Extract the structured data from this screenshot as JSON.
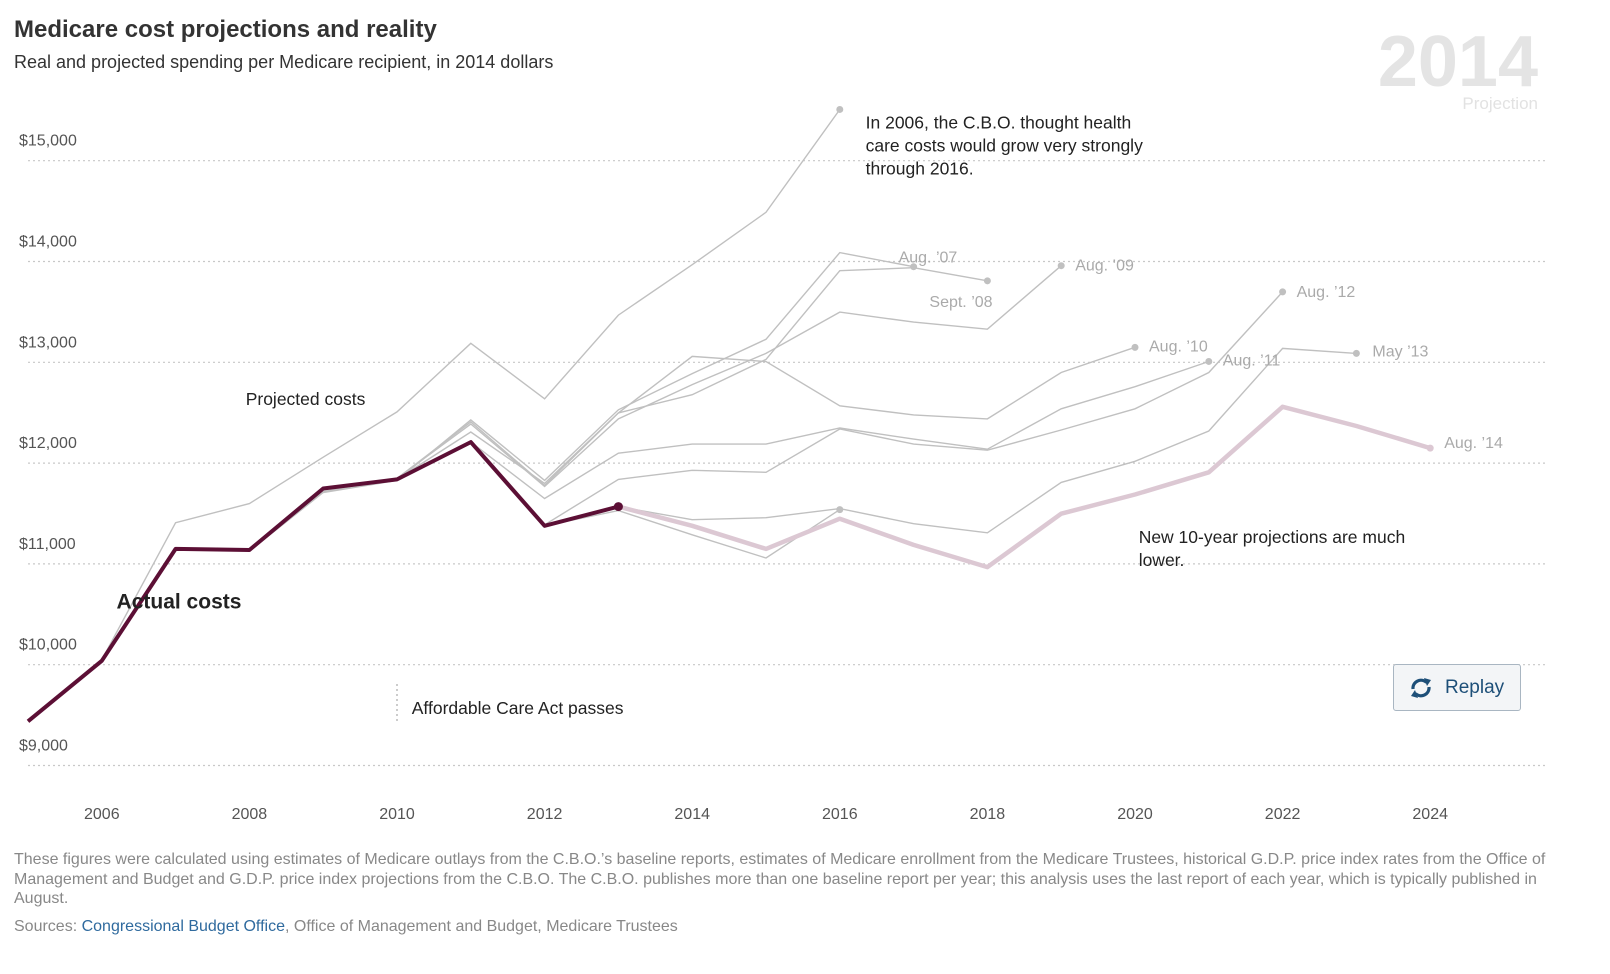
{
  "header": {
    "title": "Medicare cost projections and reality",
    "subtitle": "Real and projected spending per Medicare recipient, in 2014 dollars",
    "year_display": "2014",
    "mode_label": "Projection"
  },
  "controls": {
    "replay_label": "Replay",
    "replay_icon": "refresh-icon"
  },
  "footer": {
    "note": "These figures were calculated using estimates of Medicare outlays from the C.B.O.’s baseline reports, estimates of Medicare enrollment from the Medicare Trustees, historical G.D.P. price index rates from the Office of Management and Budget and G.D.P. price index projections from the C.B.O. The C.B.O. publishes more than one baseline report per year; this analysis uses the last report of each year, which is typically published in August.",
    "sources_label": "Sources: ",
    "source_link": "Congressional Budget Office",
    "source_rest": ", Office of Management and Budget, Medicare Trustees"
  },
  "chart_data": {
    "type": "line",
    "title": "Medicare cost projections and reality",
    "subtitle": "Real and projected spending per Medicare recipient, in 2014 dollars",
    "xlim": [
      2005,
      2025.5
    ],
    "ylim": [
      8500,
      15500
    ],
    "x_ticks": [
      2006,
      2008,
      2010,
      2012,
      2014,
      2016,
      2018,
      2020,
      2022,
      2024
    ],
    "y_ticks": [
      9000,
      10000,
      11000,
      12000,
      13000,
      14000,
      15000
    ],
    "y_tick_labels": [
      "$9,000",
      "$10,000",
      "$11,000",
      "$12,000",
      "$13,000",
      "$14,000",
      "$15,000"
    ],
    "grid": "horizontal dotted",
    "colors": {
      "actual": "#5c0f35",
      "latest_projection": "#dcc8d3",
      "projection": "#c0c0c0",
      "label": "#aaaaaa"
    },
    "actual": {
      "name": "Actual costs",
      "x": [
        2005,
        2006,
        2007,
        2008,
        2009,
        2010,
        2011,
        2012,
        2013
      ],
      "y": [
        9230,
        9830,
        10940,
        10930,
        11540,
        11630,
        12000,
        11170,
        11360
      ]
    },
    "latest": {
      "label": "Aug. ’14",
      "x": [
        2013,
        2014,
        2015,
        2016,
        2017,
        2018,
        2019,
        2020,
        2021,
        2022,
        2023,
        2024
      ],
      "y": [
        11360,
        11170,
        10940,
        11240,
        10980,
        10760,
        11290,
        11480,
        11700,
        12350,
        12160,
        11940
      ]
    },
    "projections": [
      {
        "label": "",
        "x": [
          2005,
          2006,
          2007,
          2008,
          2009,
          2010,
          2011,
          2012,
          2013,
          2014,
          2015,
          2016
        ],
        "y": [
          9230,
          9840,
          11200,
          11390,
          11850,
          12300,
          12980,
          12430,
          13260,
          13760,
          14280,
          15300
        ]
      },
      {
        "label": "Aug. ’07",
        "x": [
          2006,
          2007,
          2008,
          2009,
          2010,
          2011,
          2012,
          2013,
          2014,
          2015,
          2016,
          2017
        ],
        "y": [
          9830,
          10950,
          10920,
          11500,
          11620,
          12220,
          11620,
          12320,
          12680,
          13020,
          13880,
          13740
        ]
      },
      {
        "label": "Sept. ’08",
        "x": [
          2007,
          2008,
          2009,
          2010,
          2011,
          2012,
          2013,
          2014,
          2015,
          2016,
          2017,
          2018
        ],
        "y": [
          10940,
          10930,
          11510,
          11640,
          12200,
          11570,
          12290,
          12470,
          12820,
          13700,
          13730,
          13600
        ]
      },
      {
        "label": "Aug. ’09",
        "x": [
          2008,
          2009,
          2010,
          2011,
          2012,
          2013,
          2014,
          2015,
          2016,
          2017,
          2018,
          2019
        ],
        "y": [
          10930,
          11540,
          11640,
          12180,
          11560,
          12230,
          12570,
          12880,
          13290,
          13190,
          13120,
          13750
        ]
      },
      {
        "label": "Aug. ’10",
        "x": [
          2009,
          2010,
          2011,
          2012,
          2013,
          2014,
          2015,
          2016,
          2017,
          2018,
          2019,
          2020
        ],
        "y": [
          11540,
          11630,
          12100,
          11590,
          12290,
          12850,
          12800,
          12360,
          12270,
          12230,
          12690,
          12940
        ]
      },
      {
        "label": "Aug. ’11",
        "x": [
          2010,
          2011,
          2012,
          2013,
          2014,
          2015,
          2016,
          2017,
          2018,
          2019,
          2020,
          2021
        ],
        "y": [
          11630,
          12000,
          11440,
          11890,
          11980,
          11980,
          12140,
          12030,
          11930,
          12330,
          12550,
          12800
        ]
      },
      {
        "label": "Aug. ’12",
        "x": [
          2011,
          2012,
          2013,
          2014,
          2015,
          2016,
          2017,
          2018,
          2019,
          2020,
          2021,
          2022
        ],
        "y": [
          12000,
          11180,
          11630,
          11720,
          11700,
          12130,
          11980,
          11920,
          12120,
          12330,
          12690,
          13490
        ]
      },
      {
        "label": "May ’13",
        "x": [
          2012,
          2013,
          2014,
          2015,
          2016,
          2017,
          2018,
          2019,
          2020,
          2021,
          2022,
          2023
        ],
        "y": [
          11170,
          11360,
          11230,
          11250,
          11340,
          11190,
          11100,
          11600,
          11810,
          12110,
          12930,
          12880
        ]
      },
      {
        "label": "",
        "x": [
          2012,
          2013,
          2014,
          2015,
          2016
        ],
        "y": [
          11170,
          11320,
          11080,
          10850,
          11330
        ]
      }
    ],
    "annotations": [
      {
        "text": [
          "In 2006, the C.B.O. thought health",
          "care costs would grow very strongly",
          "through 2016."
        ],
        "x": 2016.35,
        "y": 15170
      },
      {
        "text": [
          "Projected costs"
        ],
        "x": 2007.95,
        "y": 12430
      },
      {
        "text": [
          "Actual costs"
        ],
        "x": 2006.2,
        "y": 10410
      },
      {
        "text": [
          "New 10-year projections are much",
          "lower."
        ],
        "x": 2020.05,
        "y": 11060
      },
      {
        "text": [
          "Affordable Care Act passes"
        ],
        "x": 2010.2,
        "y": 9360
      }
    ],
    "aca_year": 2010
  }
}
